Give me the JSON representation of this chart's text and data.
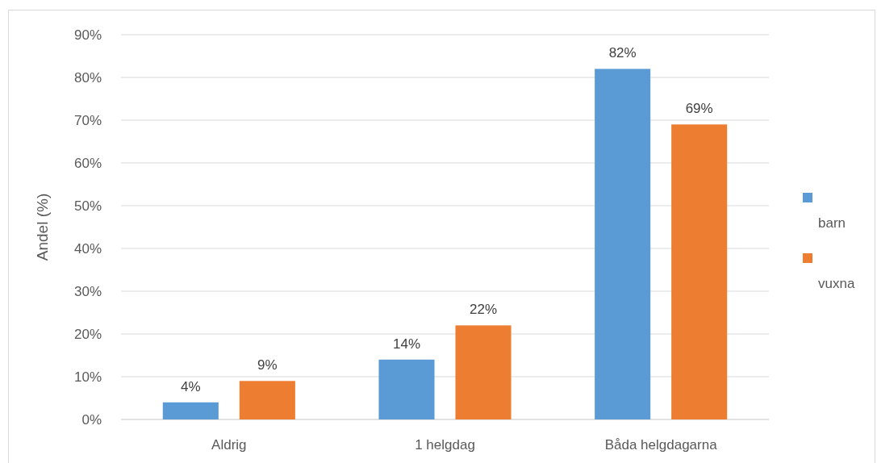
{
  "chart_data": {
    "type": "bar",
    "ylabel": "Andel (%)",
    "categories": [
      "Aldrig",
      "1 helgdag",
      "Båda helgdagarna"
    ],
    "series": [
      {
        "name": "barn",
        "color": "#5b9bd5",
        "values": [
          4,
          14,
          82
        ],
        "value_labels": [
          "4%",
          "14%",
          "82%"
        ]
      },
      {
        "name": "vuxna",
        "color": "#ed7d31",
        "values": [
          9,
          22,
          69
        ],
        "value_labels": [
          "9%",
          "22%",
          "69%"
        ]
      }
    ],
    "ylim": [
      0,
      90
    ],
    "yticks": [
      {
        "value": 0,
        "label": "0%"
      },
      {
        "value": 10,
        "label": "10%"
      },
      {
        "value": 20,
        "label": "20%"
      },
      {
        "value": 30,
        "label": "30%"
      },
      {
        "value": 40,
        "label": "40%"
      },
      {
        "value": 50,
        "label": "50%"
      },
      {
        "value": 60,
        "label": "60%"
      },
      {
        "value": 70,
        "label": "70%"
      },
      {
        "value": 80,
        "label": "80%"
      },
      {
        "value": 90,
        "label": "90%"
      }
    ],
    "grid": "y",
    "legend": "right"
  }
}
